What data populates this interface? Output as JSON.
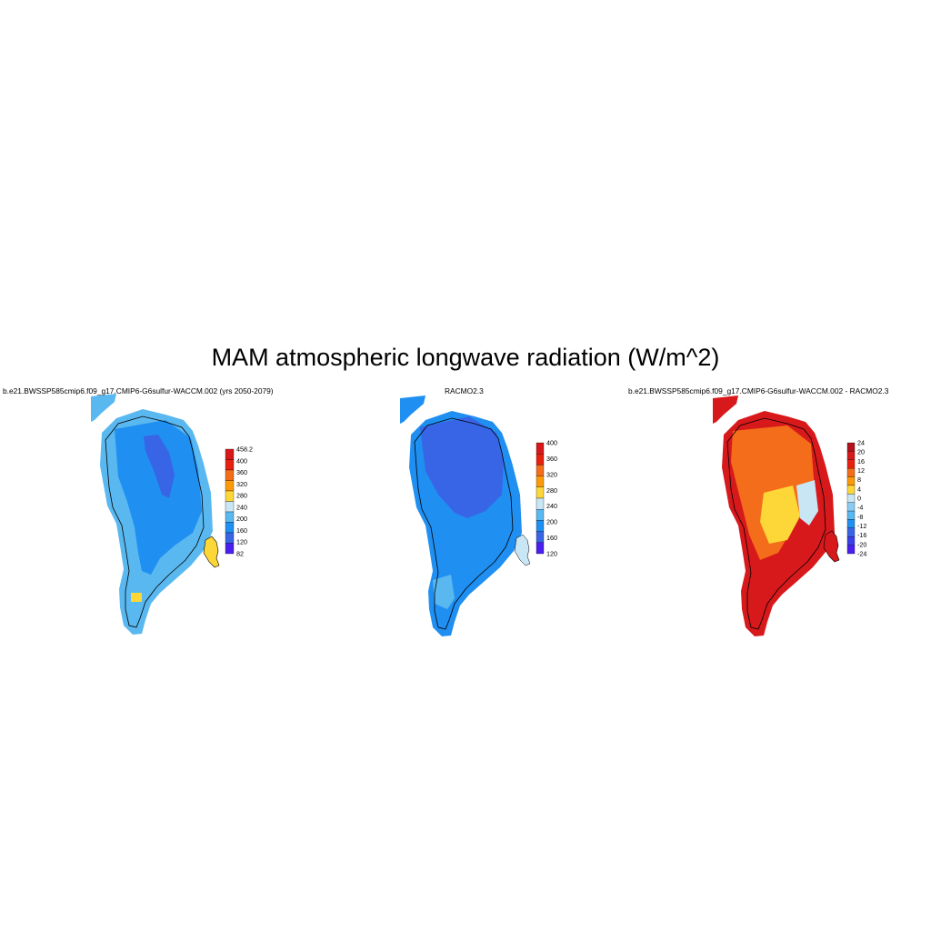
{
  "title": "MAM atmospheric longwave radiation (W/m^2)",
  "panels": [
    {
      "title": "b.e21.BWSSP585cmip6.f09_g17.CMIP6-G6sulfur-WACCM.002 (yrs 2050-2079)",
      "colorbar": {
        "labels": [
          "458.2",
          "400",
          "360",
          "320",
          "280",
          "240",
          "200",
          "160",
          "120",
          "82"
        ],
        "colors": [
          "#d7191c",
          "#e8200f",
          "#f46d1a",
          "#fd9a0a",
          "#fdd638",
          "#c9e6f5",
          "#5ab8f0",
          "#1f8ff2",
          "#3864e6",
          "#4a1ff0"
        ]
      }
    },
    {
      "title": "RACMO2.3",
      "colorbar": {
        "labels": [
          "400",
          "360",
          "320",
          "280",
          "240",
          "200",
          "160",
          "120"
        ],
        "colors": [
          "#d7191c",
          "#e8200f",
          "#f46d1a",
          "#fd9a0a",
          "#fdd638",
          "#c9e6f5",
          "#5ab8f0",
          "#1f8ff2",
          "#3864e6",
          "#4a1ff0"
        ]
      }
    },
    {
      "title": "b.e21.BWSSP585cmip6.f09_g17.CMIP6-G6sulfur-WACCM.002 - RACMO2.3",
      "colorbar": {
        "labels": [
          "24",
          "20",
          "16",
          "12",
          "8",
          "4",
          "0",
          "-4",
          "-8",
          "-12",
          "-16",
          "-20",
          "-24"
        ],
        "colors": [
          "#b2121c",
          "#d7191c",
          "#e8200f",
          "#f46d1a",
          "#fd9a0a",
          "#fdd638",
          "#c9e6f5",
          "#8ccbf2",
          "#5ab8f0",
          "#1f8ff2",
          "#3864e6",
          "#3a3fe8",
          "#4a1ff0"
        ]
      }
    }
  ]
}
